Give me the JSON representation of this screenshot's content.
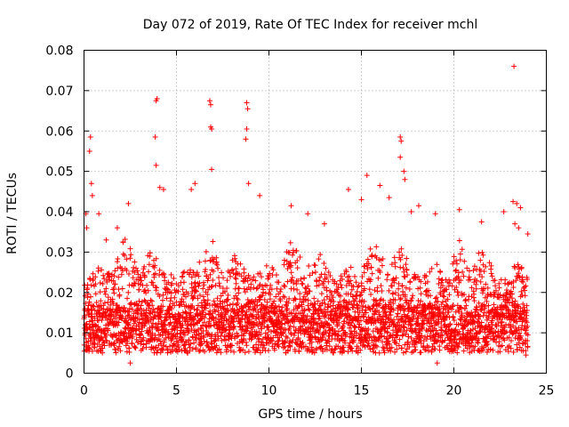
{
  "chart_data": {
    "type": "scatter",
    "title": "Day 072 of 2019, Rate Of TEC Index for receiver mchl",
    "xlabel": "GPS time / hours",
    "ylabel": "ROTI / TECUs",
    "xlim": [
      0,
      25
    ],
    "ylim": [
      0,
      0.08
    ],
    "x_ticks": [
      0,
      5,
      10,
      15,
      20,
      25
    ],
    "x_tick_labels": [
      "0",
      "5",
      "10",
      "15",
      "20",
      "25"
    ],
    "y_ticks": [
      0,
      0.01,
      0.02,
      0.03,
      0.04,
      0.05,
      0.06,
      0.07,
      0.08
    ],
    "y_tick_labels": [
      "0",
      "0.01",
      "0.02",
      "0.03",
      "0.04",
      "0.05",
      "0.06",
      "0.07",
      "0.08"
    ],
    "grid": true,
    "marker": "+",
    "series": [
      {
        "name": "ROTI",
        "color": "#ff0000",
        "dense_band": {
          "x_range": [
            0,
            24
          ],
          "y_range": [
            0.003,
            0.045
          ],
          "typical": 0.012
        },
        "points": [
          [
            0.05,
            0.0095
          ],
          [
            0.1,
            0.0395
          ],
          [
            0.15,
            0.036
          ],
          [
            0.3,
            0.055
          ],
          [
            0.35,
            0.0585
          ],
          [
            0.4,
            0.047
          ],
          [
            0.45,
            0.044
          ],
          [
            0.8,
            0.0395
          ],
          [
            1.2,
            0.033
          ],
          [
            1.8,
            0.036
          ],
          [
            2.4,
            0.042
          ],
          [
            2.5,
            0.0025
          ],
          [
            3.9,
            0.0675
          ],
          [
            3.95,
            0.068
          ],
          [
            3.85,
            0.0585
          ],
          [
            3.9,
            0.0515
          ],
          [
            4.1,
            0.046
          ],
          [
            4.3,
            0.0455
          ],
          [
            5.8,
            0.0455
          ],
          [
            6.0,
            0.047
          ],
          [
            6.8,
            0.0675
          ],
          [
            6.85,
            0.0665
          ],
          [
            6.85,
            0.061
          ],
          [
            6.9,
            0.0605
          ],
          [
            6.9,
            0.0505
          ],
          [
            8.8,
            0.067
          ],
          [
            8.85,
            0.0655
          ],
          [
            8.8,
            0.0605
          ],
          [
            8.75,
            0.058
          ],
          [
            8.9,
            0.047
          ],
          [
            9.5,
            0.044
          ],
          [
            11.2,
            0.0415
          ],
          [
            12.1,
            0.0395
          ],
          [
            13.0,
            0.037
          ],
          [
            14.3,
            0.0455
          ],
          [
            15.0,
            0.043
          ],
          [
            15.3,
            0.049
          ],
          [
            16.0,
            0.0465
          ],
          [
            16.5,
            0.0435
          ],
          [
            17.1,
            0.0585
          ],
          [
            17.15,
            0.0575
          ],
          [
            17.1,
            0.0535
          ],
          [
            17.3,
            0.05
          ],
          [
            17.35,
            0.048
          ],
          [
            17.7,
            0.04
          ],
          [
            18.1,
            0.0415
          ],
          [
            19.0,
            0.0395
          ],
          [
            19.1,
            0.0025
          ],
          [
            20.3,
            0.0405
          ],
          [
            21.5,
            0.0375
          ],
          [
            22.7,
            0.04
          ],
          [
            23.2,
            0.0425
          ],
          [
            23.25,
            0.076
          ],
          [
            23.3,
            0.037
          ],
          [
            23.4,
            0.042
          ],
          [
            23.5,
            0.036
          ],
          [
            23.6,
            0.041
          ],
          [
            24.0,
            0.0345
          ],
          [
            23.9,
            0.0045
          ],
          [
            24.0,
            0.0095
          ]
        ]
      }
    ]
  }
}
